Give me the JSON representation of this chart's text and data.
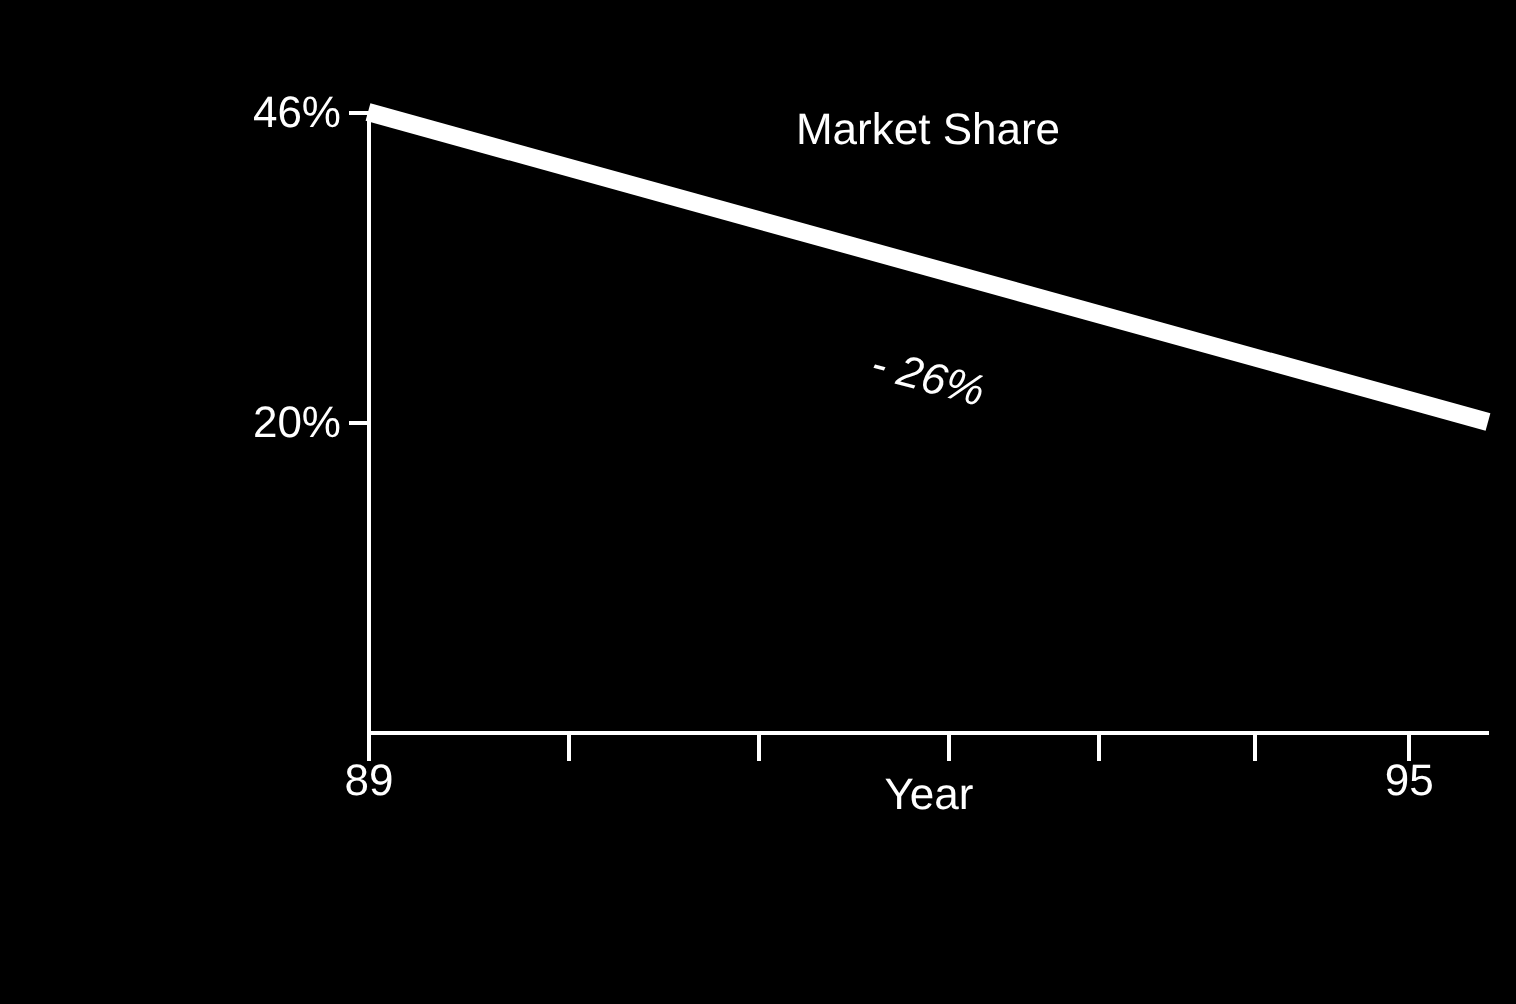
{
  "chart_data": {
    "type": "line",
    "title": "Market Share",
    "xlabel": "Year",
    "x": [
      89,
      95.46
    ],
    "series": [
      {
        "color": "#ffffff",
        "values": [
          46,
          20
        ]
      }
    ],
    "xlim": [
      89,
      95.46
    ],
    "xticks": [
      {
        "value": 89,
        "label": "89"
      },
      {
        "value": 90.15,
        "label": null
      },
      {
        "value": 91.25,
        "label": null
      },
      {
        "value": 92.35,
        "label": null
      },
      {
        "value": 93.21,
        "label": null
      },
      {
        "value": 94.11,
        "label": null
      },
      {
        "value": 95,
        "label": "95"
      }
    ],
    "ylim": [
      -6,
      46
    ],
    "yticks": [
      {
        "value": 20,
        "label": "20%"
      },
      {
        "value": 46,
        "label": "46%"
      }
    ],
    "annotations": [
      "- 26%"
    ],
    "grid": false,
    "marker": "none",
    "line_style": "solid"
  }
}
